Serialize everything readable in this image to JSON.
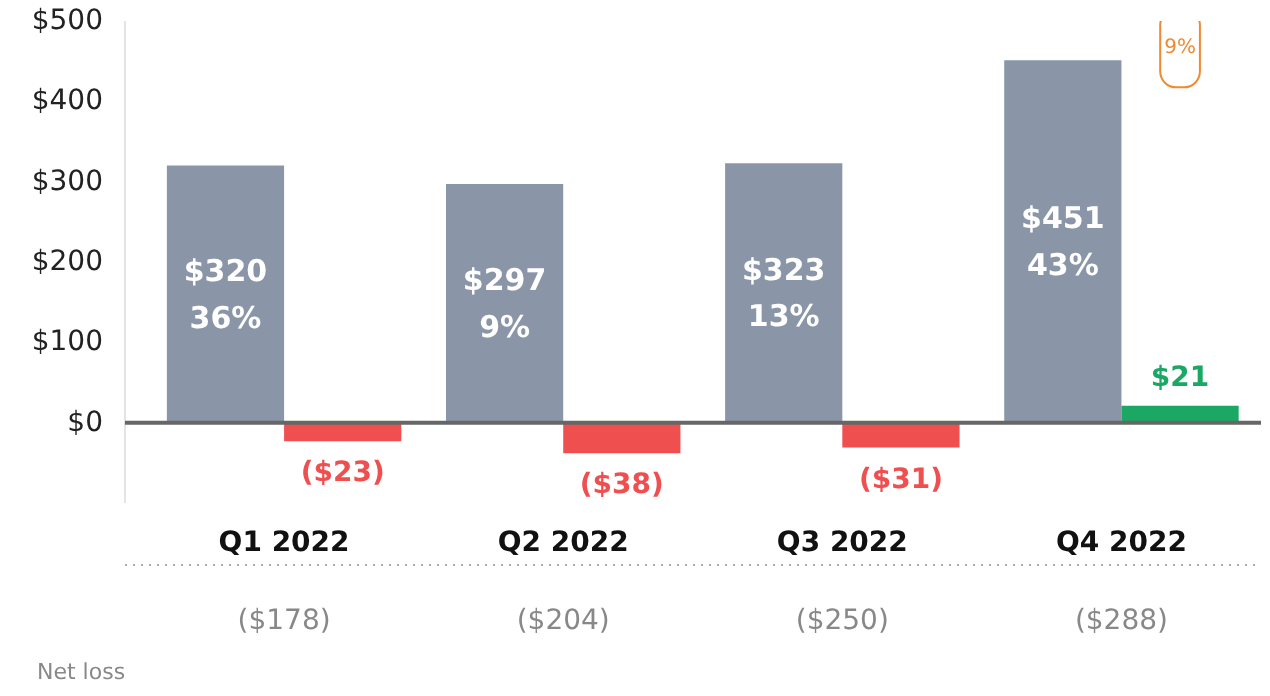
{
  "chart_data": {
    "type": "bar",
    "categories": [
      "Q1 2022",
      "Q2 2022",
      "Q3 2022",
      "Q4 2022"
    ],
    "series": [
      {
        "color": "#8a96a8",
        "values": [
          320,
          297,
          323,
          451
        ],
        "value_labels": [
          "$320\n36%",
          "$297\n9%",
          "$323\n13%",
          "$451\n43%"
        ]
      },
      {
        "colors": [
          "#ef4f4f",
          "#ef4f4f",
          "#ef4f4f",
          "#1ba864"
        ],
        "values": [
          -23,
          -38,
          -31,
          21
        ],
        "value_labels": [
          "($23)",
          "($38)",
          "($31)",
          "$21"
        ]
      }
    ],
    "ylim": [
      -100,
      500
    ],
    "yticks": [
      {
        "value": 0,
        "label": "$0"
      },
      {
        "value": 100,
        "label": "$100"
      },
      {
        "value": 200,
        "label": "$200"
      },
      {
        "value": 300,
        "label": "$300"
      },
      {
        "value": 400,
        "label": "$400"
      },
      {
        "value": 500,
        "label": "$500"
      }
    ],
    "annotations": [
      {
        "text": "9%",
        "x": "Q4 2022",
        "y": 451
      },
      "Net loss",
      "($178)",
      "($204)",
      "($250)",
      "($288)"
    ]
  }
}
